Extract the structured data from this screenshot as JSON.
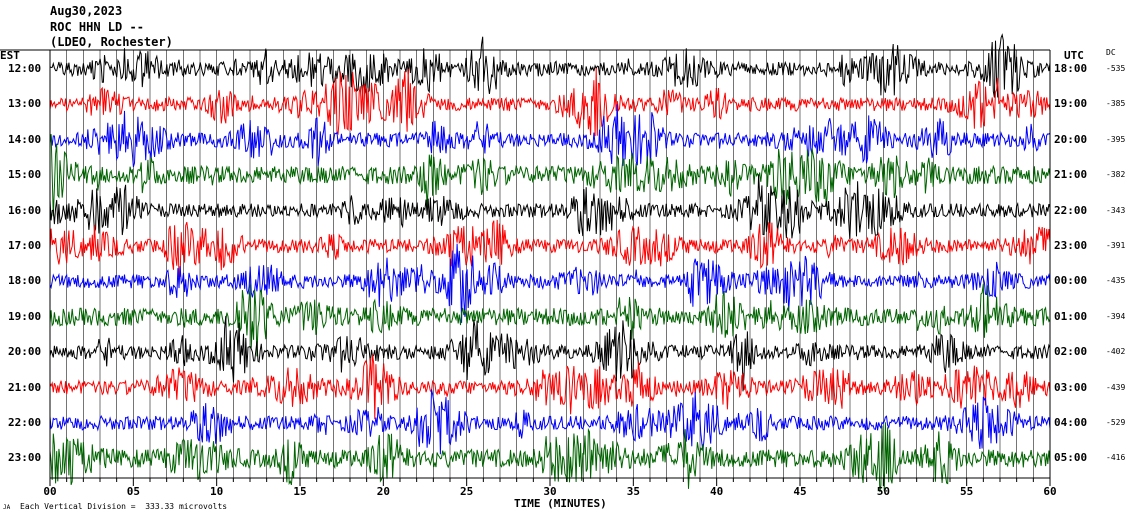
{
  "header": {
    "line1": "Aug30,2023",
    "line2": "ROC HHN LD --",
    "line3": "(LDEO, Rochester)"
  },
  "left_axis_label": "EST",
  "right_axis_label": "UTC",
  "dc_header": "DC",
  "footer": {
    "xlabel": "TIME (MINUTES)",
    "scale_note": "Each Vertical Division =  333.33 microvolts",
    "corner_mark": "JA"
  },
  "colors": {
    "cycle": [
      "#000000",
      "#ff0000",
      "#0000ff",
      "#006400"
    ],
    "axis": "#000000"
  },
  "chart_data": {
    "type": "line",
    "title": "ROC HHN LD --",
    "xlabel": "TIME (MINUTES)",
    "ylabel": "",
    "xlim": [
      0,
      60
    ],
    "x_ticks": [
      "00",
      "05",
      "10",
      "15",
      "20",
      "25",
      "30",
      "35",
      "40",
      "45",
      "50",
      "55",
      "60"
    ],
    "grid": true,
    "vertical_division_microvolts": 333.33,
    "traces": [
      {
        "est": "12:00",
        "utc": "18:00",
        "dc": "-535",
        "color": "#000000"
      },
      {
        "est": "13:00",
        "utc": "19:00",
        "dc": "-385",
        "color": "#ff0000"
      },
      {
        "est": "14:00",
        "utc": "20:00",
        "dc": "-395",
        "color": "#0000ff"
      },
      {
        "est": "15:00",
        "utc": "21:00",
        "dc": "-382",
        "color": "#006400"
      },
      {
        "est": "16:00",
        "utc": "22:00",
        "dc": "-343",
        "color": "#000000"
      },
      {
        "est": "17:00",
        "utc": "23:00",
        "dc": "-391",
        "color": "#ff0000"
      },
      {
        "est": "18:00",
        "utc": "00:00",
        "dc": "-435",
        "color": "#0000ff"
      },
      {
        "est": "19:00",
        "utc": "01:00",
        "dc": "-394",
        "color": "#006400"
      },
      {
        "est": "20:00",
        "utc": "02:00",
        "dc": "-402",
        "color": "#000000"
      },
      {
        "est": "21:00",
        "utc": "03:00",
        "dc": "-439",
        "color": "#ff0000"
      },
      {
        "est": "22:00",
        "utc": "04:00",
        "dc": "-529",
        "color": "#0000ff"
      },
      {
        "est": "23:00",
        "utc": "05:00",
        "dc": "-416",
        "color": "#006400"
      }
    ]
  }
}
